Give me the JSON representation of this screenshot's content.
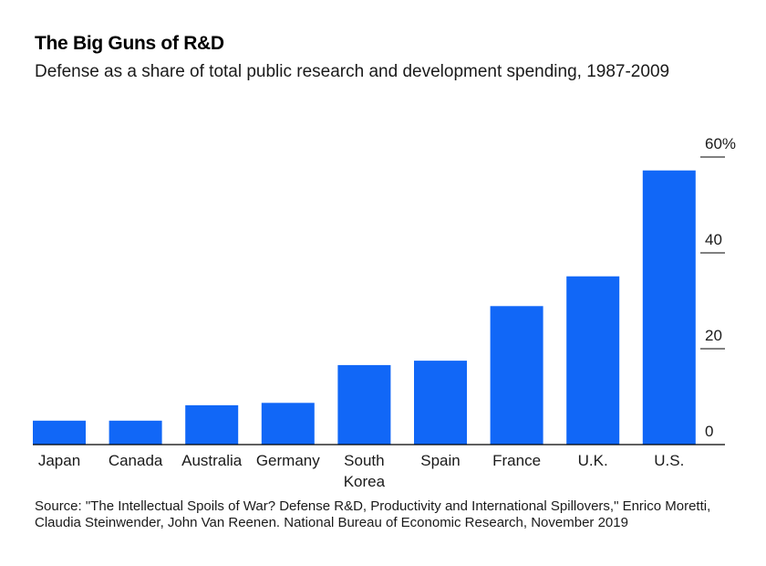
{
  "header": {
    "title": "The Big Guns of R&D",
    "subtitle": "Defense as a share of total public research and development spending, 1987-2009"
  },
  "footer": {
    "source": "Source: \"The Intellectual Spoils of War? Defense R&D, Productivity and International Spillovers,\" Enrico Moretti, Claudia Steinwender, John Van Reenen. National Bureau of Economic Research, November 2019"
  },
  "chart_data": {
    "type": "bar",
    "title": "The Big Guns of R&D",
    "subtitle": "Defense as a share of total public research and development spending, 1987-2009",
    "categories": [
      "Japan",
      "Canada",
      "Australia",
      "Germany",
      "South Korea",
      "Spain",
      "France",
      "U.K.",
      "U.S."
    ],
    "category_lines": [
      [
        "Japan"
      ],
      [
        "Canada"
      ],
      [
        "Australia"
      ],
      [
        "Germany"
      ],
      [
        "South",
        "Korea"
      ],
      [
        "Spain"
      ],
      [
        "France"
      ],
      [
        "U.K."
      ],
      [
        "U.S."
      ]
    ],
    "values": [
      5,
      5,
      8.2,
      8.7,
      16.6,
      17.5,
      28.9,
      35.1,
      57.2
    ],
    "ylim": [
      0,
      60
    ],
    "yticks": [
      0,
      20,
      40,
      60
    ],
    "ytick_labels": [
      "0",
      "20",
      "40",
      "60%"
    ],
    "y_axis_position": "right",
    "grid": false,
    "bar_color": "#1167f7"
  }
}
